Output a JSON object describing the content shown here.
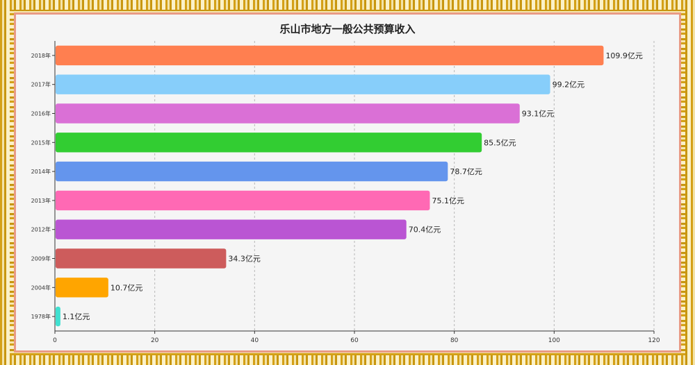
{
  "chart_data": {
    "type": "bar",
    "orientation": "horizontal",
    "title": "乐山市地方一般公共预算收入",
    "xlabel": "",
    "ylabel": "",
    "xlim": [
      0,
      120
    ],
    "x_ticks": [
      0,
      20,
      40,
      60,
      80,
      100,
      120
    ],
    "grid": true,
    "value_suffix": "亿元",
    "categories": [
      "2018年",
      "2017年",
      "2016年",
      "2015年",
      "2014年",
      "2013年",
      "2012年",
      "2009年",
      "2004年",
      "1978年"
    ],
    "values": [
      109.9,
      99.2,
      93.1,
      85.5,
      78.7,
      75.1,
      70.4,
      34.3,
      10.7,
      1.1
    ],
    "data_labels": [
      "109.9亿元",
      "99.2亿元",
      "93.1亿元",
      "85.5亿元",
      "78.7亿元",
      "75.1亿元",
      "70.4亿元",
      "34.3亿元",
      "10.7亿元",
      "1.1亿元"
    ],
    "colors": [
      "#ff7f50",
      "#87cefa",
      "#da70d6",
      "#32cd32",
      "#6495ed",
      "#ff69b4",
      "#ba55d3",
      "#cd5c5c",
      "#ffa500",
      "#40e0d0"
    ]
  }
}
